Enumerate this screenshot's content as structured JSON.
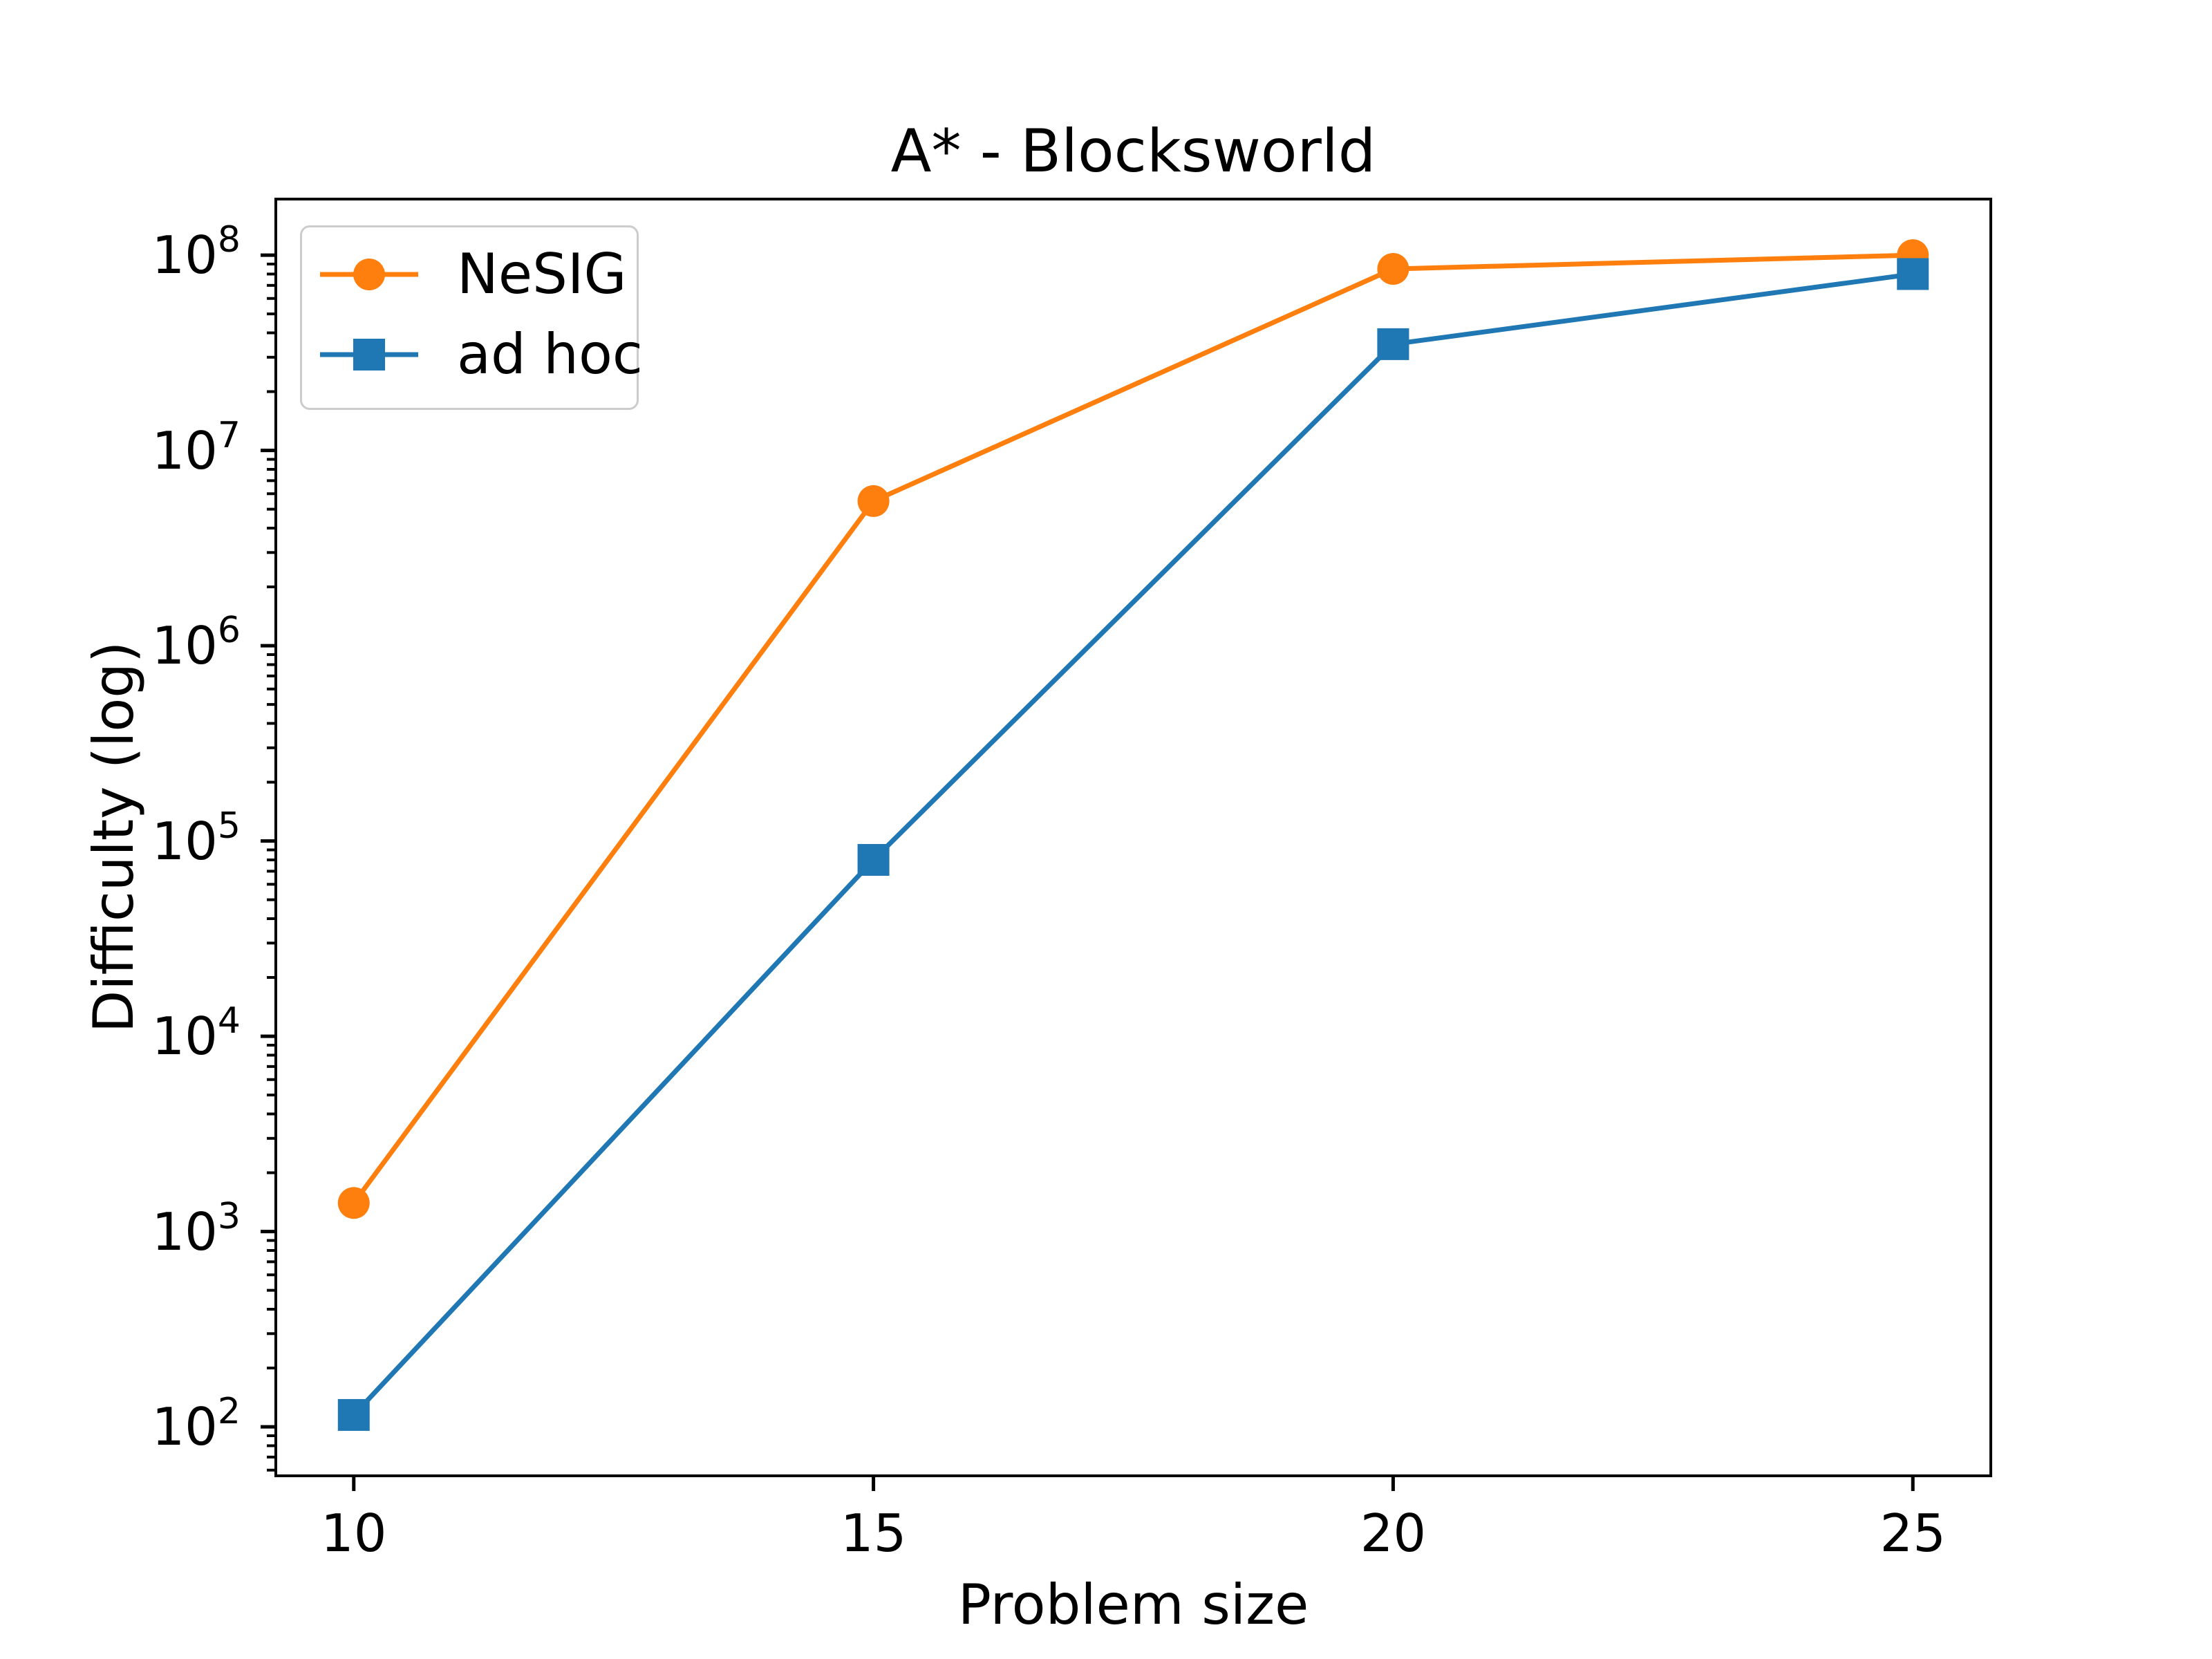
{
  "figure": {
    "background_color": "#ffffff",
    "plot_background_color": "#ffffff",
    "spine_color": "#000000"
  },
  "chart_data": {
    "type": "line",
    "title": "A* - Blocksworld",
    "xlabel": "Problem size",
    "ylabel": "Difficulty (log)",
    "x": [
      10,
      15,
      20,
      25
    ],
    "series": [
      {
        "name": "NeSIG",
        "color": "#ff7f0e",
        "marker": "circle",
        "values": [
          1400,
          5500000,
          85000000,
          100000000
        ]
      },
      {
        "name": "ad hoc",
        "color": "#1f77b4",
        "marker": "square",
        "values": [
          115,
          80000,
          35000000,
          80000000
        ]
      }
    ],
    "x_ticks": [
      10,
      15,
      20,
      25
    ],
    "x_tick_labels": [
      "10",
      "15",
      "20",
      "25"
    ],
    "y_scale": "log",
    "y_tick_base": "10",
    "y_tick_exponents": [
      2,
      3,
      4,
      5,
      6,
      7,
      8
    ],
    "xlim": [
      9.25,
      25.75
    ],
    "ylim_log": [
      1.749,
      8.287
    ],
    "grid": false,
    "legend": {
      "position": "upper left",
      "entries": [
        "NeSIG",
        "ad hoc"
      ]
    }
  }
}
